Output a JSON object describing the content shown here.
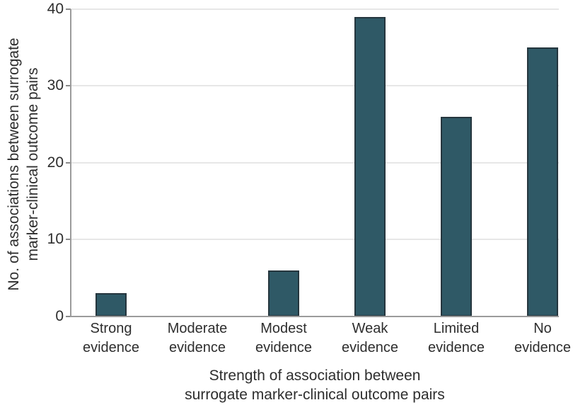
{
  "chart_data": {
    "type": "bar",
    "title": "",
    "categories": [
      "Strong\nevidence",
      "Moderate\nevidence",
      "Modest\nevidence",
      "Weak\nevidence",
      "Limited\nevidence",
      "No\nevidence"
    ],
    "values": [
      3,
      0,
      6,
      39,
      26,
      35
    ],
    "xlabel": "Strength of association between\nsurrogate marker-clinical outcome pairs",
    "ylabel": "No. of associations between surrogate\nmarker-clinical outcome pairs",
    "ylim": [
      0,
      40
    ],
    "yticks": [
      0,
      10,
      20,
      30,
      40
    ],
    "grid": "horizontal",
    "legend": "none",
    "colors": {
      "bar_fill": "#2f5966",
      "bar_border": "#25363e",
      "gridline": "#e7e7e7",
      "axis_line": "#9b9b9b",
      "tick_mark": "#8a8a8a",
      "text": "#2e2e2e",
      "background": "#ffffff"
    }
  }
}
